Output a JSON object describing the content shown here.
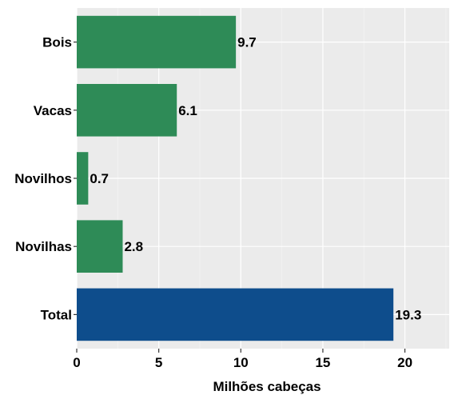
{
  "chart_data": {
    "type": "bar",
    "orientation": "horizontal",
    "categories": [
      "Bois",
      "Vacas",
      "Novilhos",
      "Novilhas",
      "Total"
    ],
    "values": [
      9.7,
      6.1,
      0.7,
      2.8,
      19.3
    ],
    "data_labels": [
      "9.7",
      "6.1",
      "0.7",
      "2.8",
      "19.3"
    ],
    "bar_colors": [
      "#2e8b57",
      "#2e8b57",
      "#2e8b57",
      "#2e8b57",
      "#0e4d8c"
    ],
    "xlabel": "Milhões cabeças",
    "ylabel": "",
    "xlim": [
      0,
      22.7
    ],
    "x_ticks": [
      0,
      5,
      10,
      15,
      20
    ],
    "x_tick_labels": [
      "0",
      "5",
      "10",
      "15",
      "20"
    ],
    "grid": true,
    "legend": "none"
  }
}
